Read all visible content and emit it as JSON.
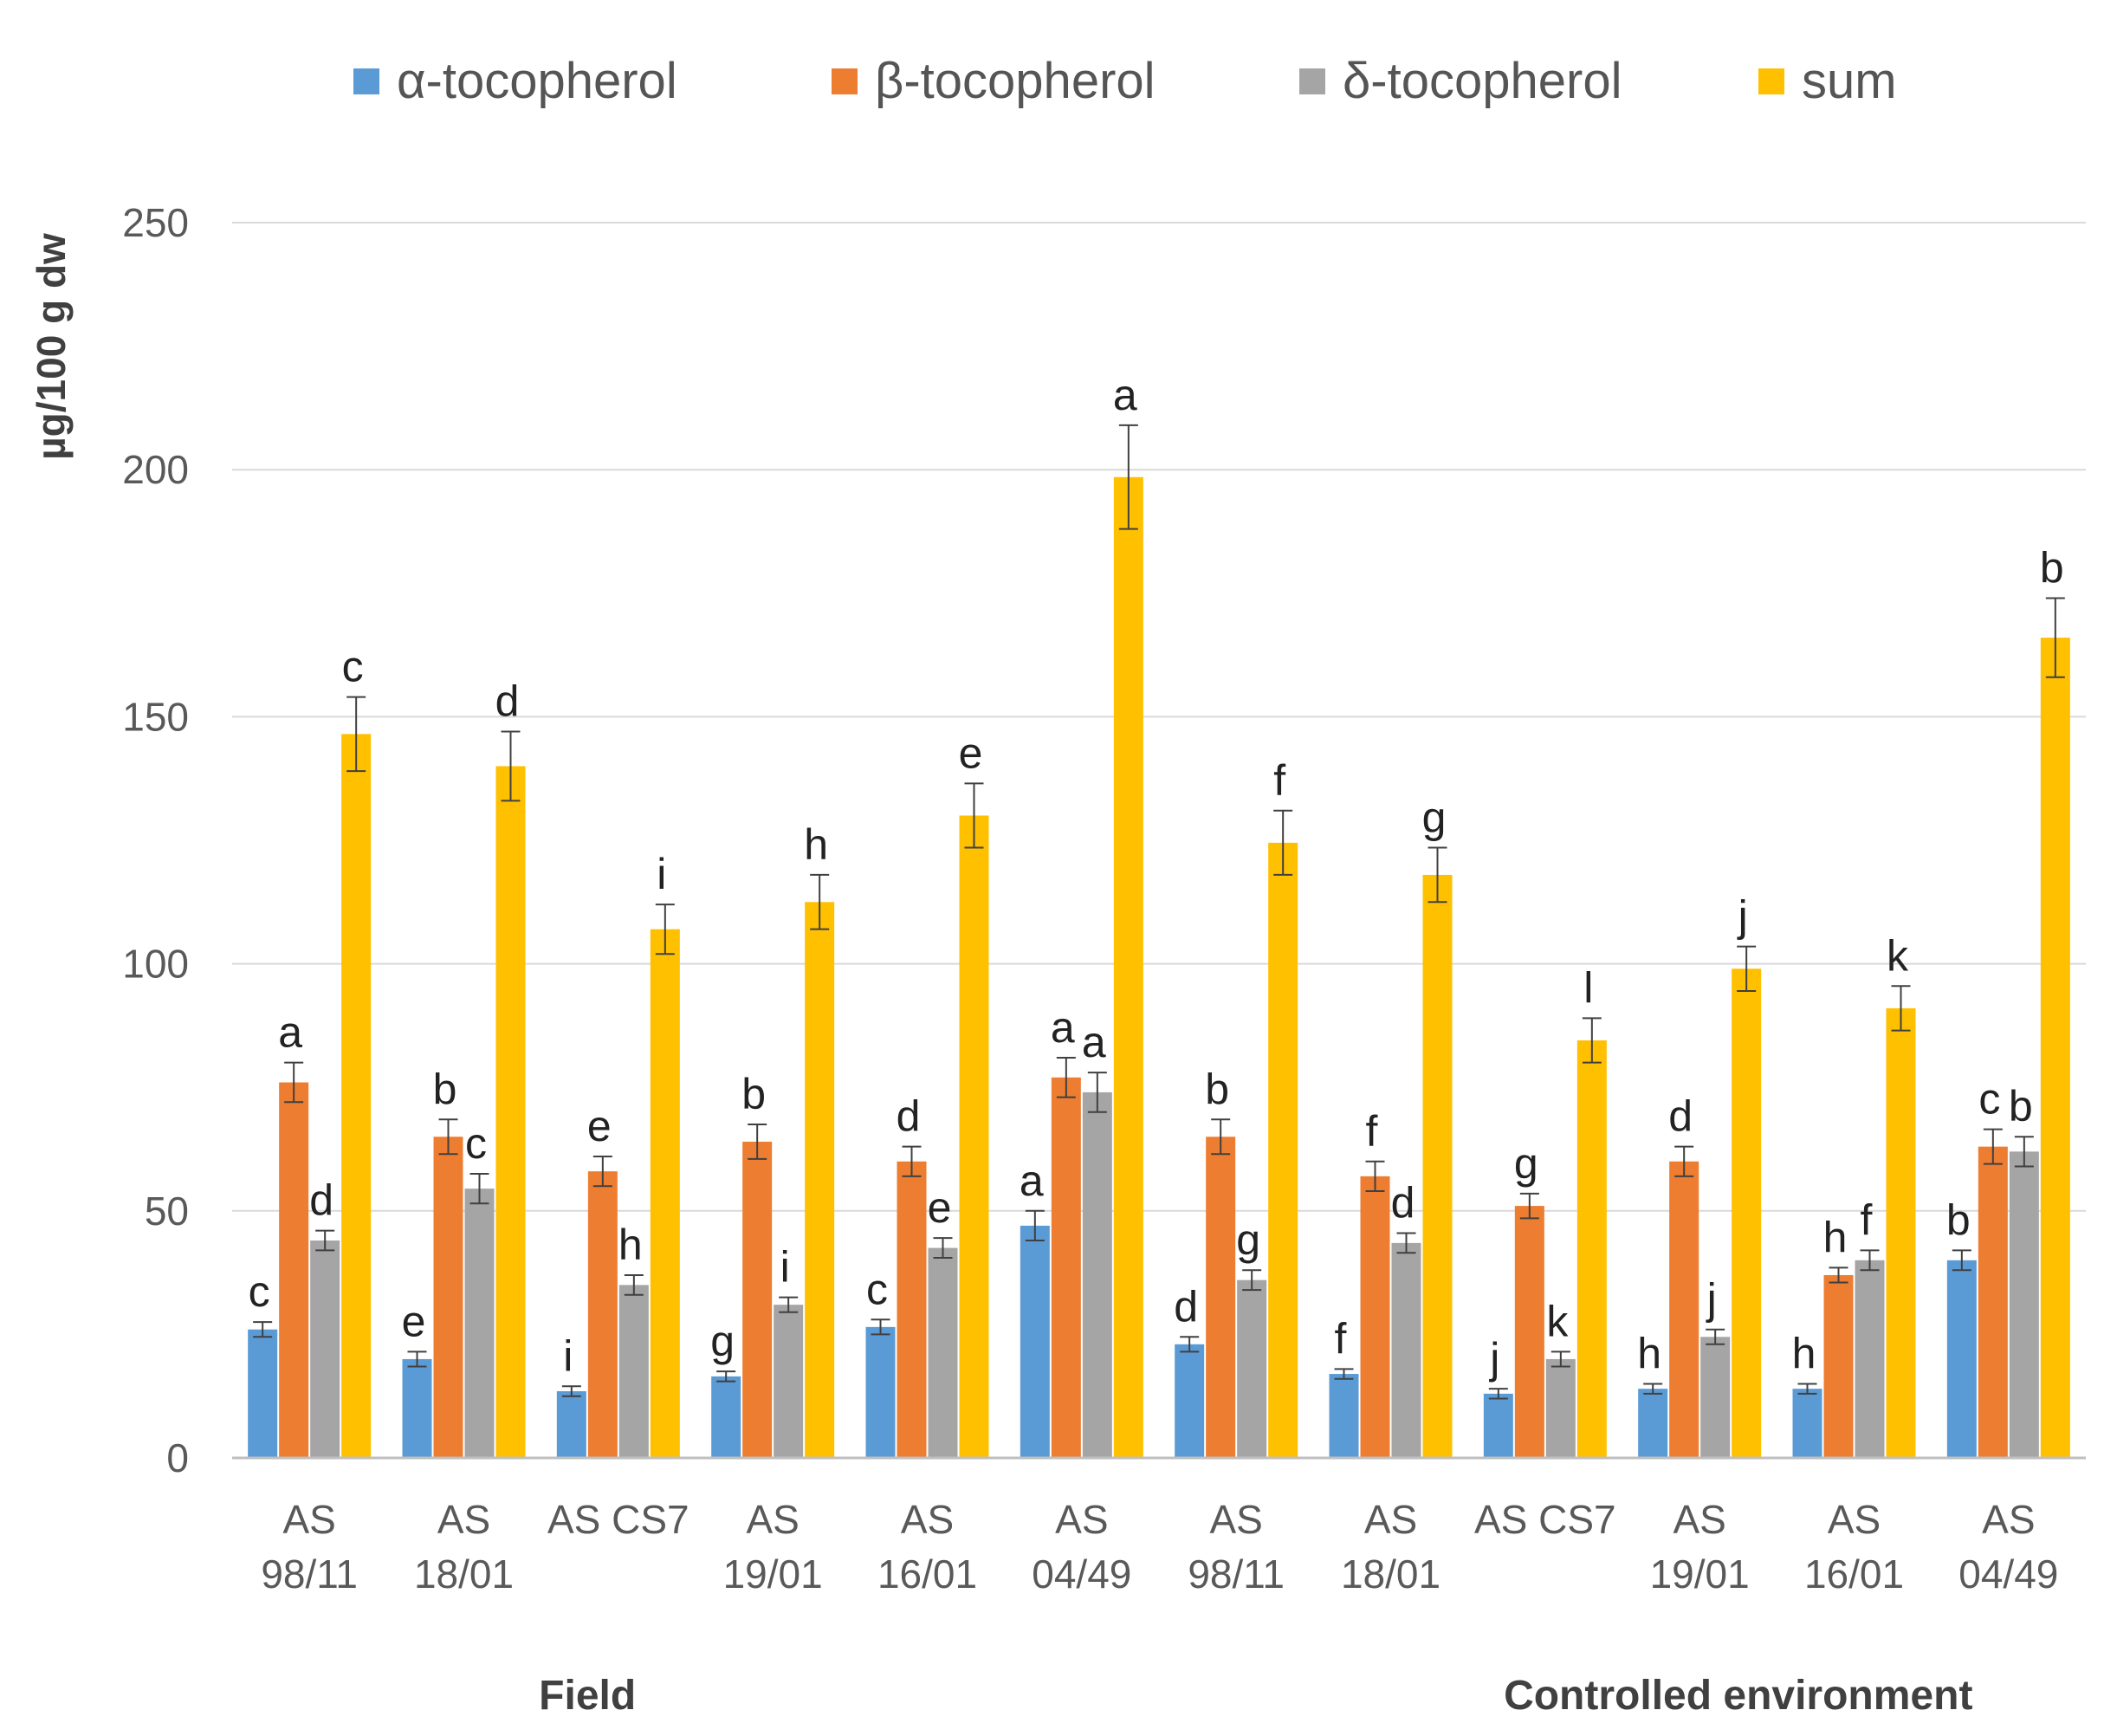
{
  "chart_data": {
    "type": "bar",
    "title": "",
    "xlabel": "",
    "ylabel": "µg/100 g dw",
    "ylim": [
      0,
      250
    ],
    "yticks": [
      0,
      50,
      100,
      150,
      200,
      250
    ],
    "grid": true,
    "legend_position": "top",
    "categories": [
      [
        "AS",
        "98/11"
      ],
      [
        "AS",
        "18/01"
      ],
      [
        "AS CS7"
      ],
      [
        "AS",
        "19/01"
      ],
      [
        "AS",
        "16/01"
      ],
      [
        "AS",
        "04/49"
      ],
      [
        "AS",
        "98/11"
      ],
      [
        "AS",
        "18/01"
      ],
      [
        "AS CS7"
      ],
      [
        "AS",
        "19/01"
      ],
      [
        "AS",
        "16/01"
      ],
      [
        "AS",
        "04/49"
      ]
    ],
    "groups": [
      {
        "label": "Field",
        "first": 0,
        "last": 5
      },
      {
        "label": "Controlled environment",
        "first": 6,
        "last": 11
      }
    ],
    "series": [
      {
        "name": "α-tocopherol",
        "color": "#5b9bd5",
        "values": [
          26,
          20,
          13.5,
          16.5,
          26.5,
          47,
          23,
          17,
          13,
          14,
          14,
          40
        ],
        "errors": [
          1.5,
          1.5,
          1,
          1,
          1.5,
          3,
          1.5,
          1,
          1,
          1,
          1,
          2
        ],
        "letters": [
          "c",
          "e",
          "i",
          "g",
          "c",
          "a",
          "d",
          "f",
          "j",
          "h",
          "h",
          "b"
        ]
      },
      {
        "name": "β-tocopherol",
        "color": "#ed7d31",
        "values": [
          76,
          65,
          58,
          64,
          60,
          77,
          65,
          57,
          51,
          60,
          37,
          63
        ],
        "errors": [
          4,
          3.5,
          3,
          3.5,
          3,
          4,
          3.5,
          3,
          2.5,
          3,
          1.5,
          3.5
        ],
        "letters": [
          "a",
          "b",
          "e",
          "b",
          "d",
          "a",
          "b",
          "f",
          "g",
          "d",
          "h",
          "c"
        ]
      },
      {
        "name": "δ-tocopherol",
        "color": "#a5a5a5",
        "values": [
          44,
          54.5,
          35,
          31,
          42.5,
          74,
          36,
          43.5,
          20,
          24.5,
          40,
          62
        ],
        "errors": [
          2,
          3,
          2,
          1.5,
          2,
          4,
          2,
          2,
          1.5,
          1.5,
          2,
          3
        ],
        "letters": [
          "d",
          "c",
          "h",
          "i",
          "e",
          "a",
          "g",
          "d",
          "k",
          "j",
          "f",
          "b"
        ]
      },
      {
        "name": "sum",
        "color": "#ffc000",
        "values": [
          146.5,
          140,
          107,
          112.5,
          130,
          198.5,
          124.5,
          118,
          84.5,
          99,
          91,
          166
        ],
        "errors": [
          7.5,
          7,
          5,
          5.5,
          6.5,
          10.5,
          6.5,
          5.5,
          4.5,
          4.5,
          4.5,
          8
        ],
        "letters": [
          "c",
          "d",
          "i",
          "h",
          "e",
          "a",
          "f",
          "g",
          "l",
          "j",
          "k",
          "b"
        ]
      }
    ]
  }
}
